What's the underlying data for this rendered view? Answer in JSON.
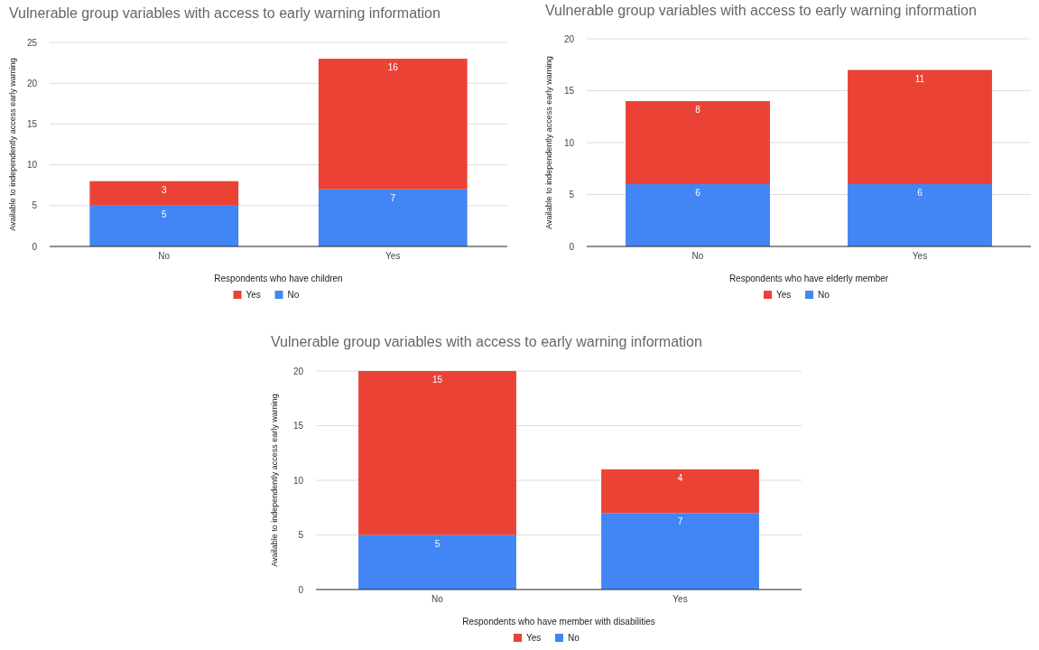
{
  "chart_data": [
    {
      "type": "bar",
      "stacked": true,
      "title": "Vulnerable group variables with access to early warning information",
      "xlabel": "Respondents who have children",
      "ylabel": "Available to independently access early warning",
      "categories": [
        "No",
        "Yes"
      ],
      "series": [
        {
          "name": "No",
          "color": "#4285f4",
          "values": [
            5,
            7
          ]
        },
        {
          "name": "Yes",
          "color": "#ea4335",
          "values": [
            3,
            16
          ]
        }
      ],
      "ylim": [
        0,
        25
      ],
      "yticks": [
        0,
        5,
        10,
        15,
        20,
        25
      ],
      "grid": "y",
      "legend": "bottom",
      "data_labels": true
    },
    {
      "type": "bar",
      "stacked": true,
      "title": "Vulnerable group variables with access to early warning information",
      "xlabel": "Respondents who have elderly member",
      "ylabel": "Available to independently access early warning",
      "categories": [
        "No",
        "Yes"
      ],
      "series": [
        {
          "name": "No",
          "color": "#4285f4",
          "values": [
            6,
            6
          ]
        },
        {
          "name": "Yes",
          "color": "#ea4335",
          "values": [
            8,
            11
          ]
        }
      ],
      "ylim": [
        0,
        20
      ],
      "yticks": [
        0,
        5,
        10,
        15,
        20
      ],
      "grid": "y",
      "legend": "bottom",
      "data_labels": true
    },
    {
      "type": "bar",
      "stacked": true,
      "title": "Vulnerable group variables with access to early warning information",
      "xlabel": "Respondents who have member with disabilities",
      "ylabel": "Available to independently access early warning",
      "categories": [
        "No",
        "Yes"
      ],
      "series": [
        {
          "name": "No",
          "color": "#4285f4",
          "values": [
            5,
            7
          ]
        },
        {
          "name": "Yes",
          "color": "#ea4335",
          "values": [
            15,
            4
          ]
        }
      ],
      "ylim": [
        0,
        20
      ],
      "yticks": [
        0,
        5,
        10,
        15,
        20
      ],
      "grid": "y",
      "legend": "bottom",
      "data_labels": true
    }
  ]
}
